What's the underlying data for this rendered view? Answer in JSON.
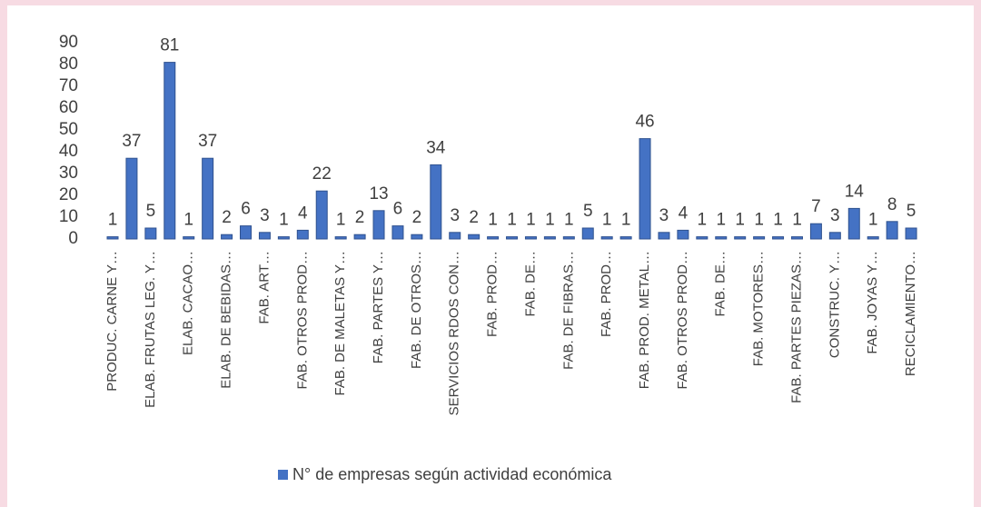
{
  "chart_data": {
    "type": "bar",
    "categories": [
      "PRODUC. CARNE Y…",
      null,
      "ELAB. FRUTAS LEG. Y…",
      null,
      "ELAB. CACAO…",
      null,
      "ELAB. DE BEBIDAS…",
      null,
      "FAB. ART…",
      null,
      "FAB. OTROS PROD…",
      null,
      "FAB. DE MALETAS Y…",
      null,
      "FAB. PARTES Y…",
      null,
      "FAB. DE OTROS…",
      null,
      "SERVICIOS RDOS CON…",
      null,
      "FAB. PROD…",
      null,
      "FAB. DE…",
      null,
      "FAB. DE FIBRAS…",
      null,
      "FAB. PROD…",
      null,
      "FAB. PROD. METAL…",
      null,
      "FAB. OTROS PROD…",
      null,
      "FAB. DE…",
      null,
      "FAB.  MOTORES…",
      null,
      "FAB. PARTES PIEZAS…",
      null,
      "CONSTRUC. Y…",
      null,
      "FAB. JOYAS Y…",
      null,
      "RECICLAMIENTO…"
    ],
    "series": [
      {
        "name": "N° de empresas según actividad económica",
        "color": "#4472c4",
        "values": [
          1,
          37,
          5,
          81,
          1,
          37,
          2,
          6,
          3,
          1,
          4,
          22,
          1,
          2,
          13,
          6,
          2,
          34,
          3,
          2,
          1,
          1,
          1,
          1,
          1,
          5,
          1,
          1,
          46,
          3,
          4,
          1,
          1,
          1,
          1,
          1,
          1,
          7,
          3,
          14,
          1,
          8,
          5
        ]
      }
    ],
    "ylim": [
      0,
      90
    ],
    "yticks": [
      0,
      10,
      20,
      30,
      40,
      50,
      60,
      70,
      80,
      90
    ],
    "grid": false,
    "legend": "bottom"
  }
}
